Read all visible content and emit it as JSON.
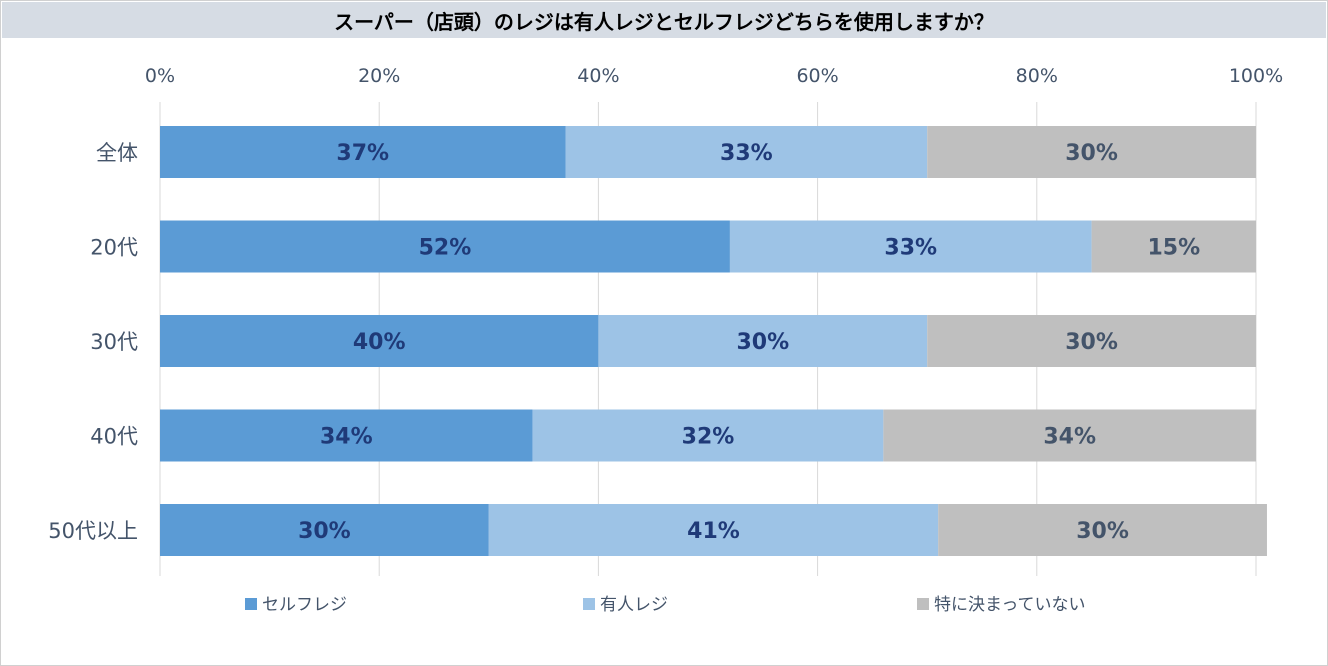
{
  "colors": {
    "title_bg": "#d6dce4",
    "grid": "#d9d9d9",
    "label_dark": "#1f3a78",
    "label_gray": "#44546a"
  },
  "chart_data": {
    "type": "bar",
    "orientation": "horizontal",
    "stacked": true,
    "title": "スーパー（店頭）のレジは有人レジとセルフレジどちらを使用しますか？",
    "categories": [
      "全体",
      "20代",
      "30代",
      "40代",
      "50代以上"
    ],
    "series": [
      {
        "name": "セルフレジ",
        "color": "#5b9bd5",
        "labelColor": "#1f3a78",
        "values": [
          37,
          52,
          40,
          34,
          30
        ]
      },
      {
        "name": "有人レジ",
        "color": "#9dc3e6",
        "labelColor": "#1f3a78",
        "values": [
          33,
          33,
          30,
          32,
          41
        ]
      },
      {
        "name": "特に決まっていない",
        "color": "#bfbfbf",
        "labelColor": "#44546a",
        "values": [
          30,
          15,
          30,
          34,
          30
        ]
      }
    ],
    "xlim": [
      0,
      100
    ],
    "xticks": [
      0,
      20,
      40,
      60,
      80,
      100
    ],
    "tick_suffix": "%",
    "xlabel": "",
    "ylabel": "",
    "grid": true,
    "legend_position": "bottom"
  }
}
